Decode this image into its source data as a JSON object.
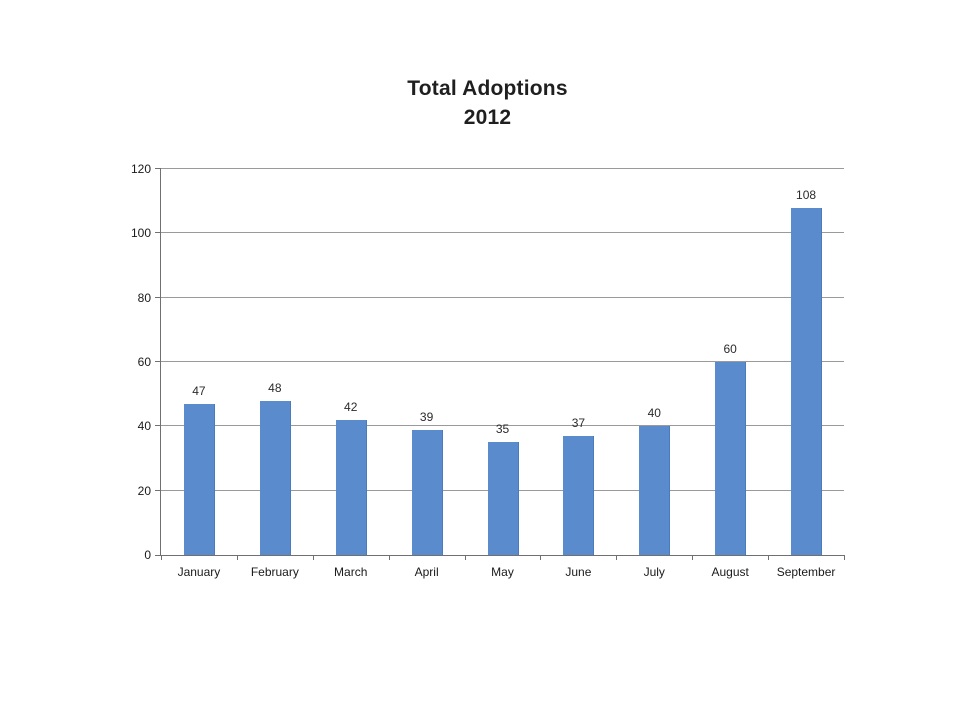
{
  "title": {
    "line1": "Total Adoptions",
    "line2": "2012"
  },
  "chart_data": {
    "type": "bar",
    "title": "Total Adoptions 2012",
    "categories": [
      "January",
      "February",
      "March",
      "April",
      "May",
      "June",
      "July",
      "August",
      "September"
    ],
    "values": [
      47,
      48,
      42,
      39,
      35,
      37,
      40,
      60,
      108
    ],
    "data_labels_shown": true,
    "xlabel": "",
    "ylabel": "",
    "ylim": [
      0,
      120
    ],
    "yticks": [
      0,
      20,
      40,
      60,
      80,
      100,
      120
    ],
    "grid": "horizontal",
    "legend": "none",
    "colors": {
      "bar_fill": "#5A8CCD",
      "bar_edge": "#4A7BBC",
      "gridline": "#9a9a9a",
      "axis": "#707070",
      "text": "#1a1a1a"
    }
  }
}
